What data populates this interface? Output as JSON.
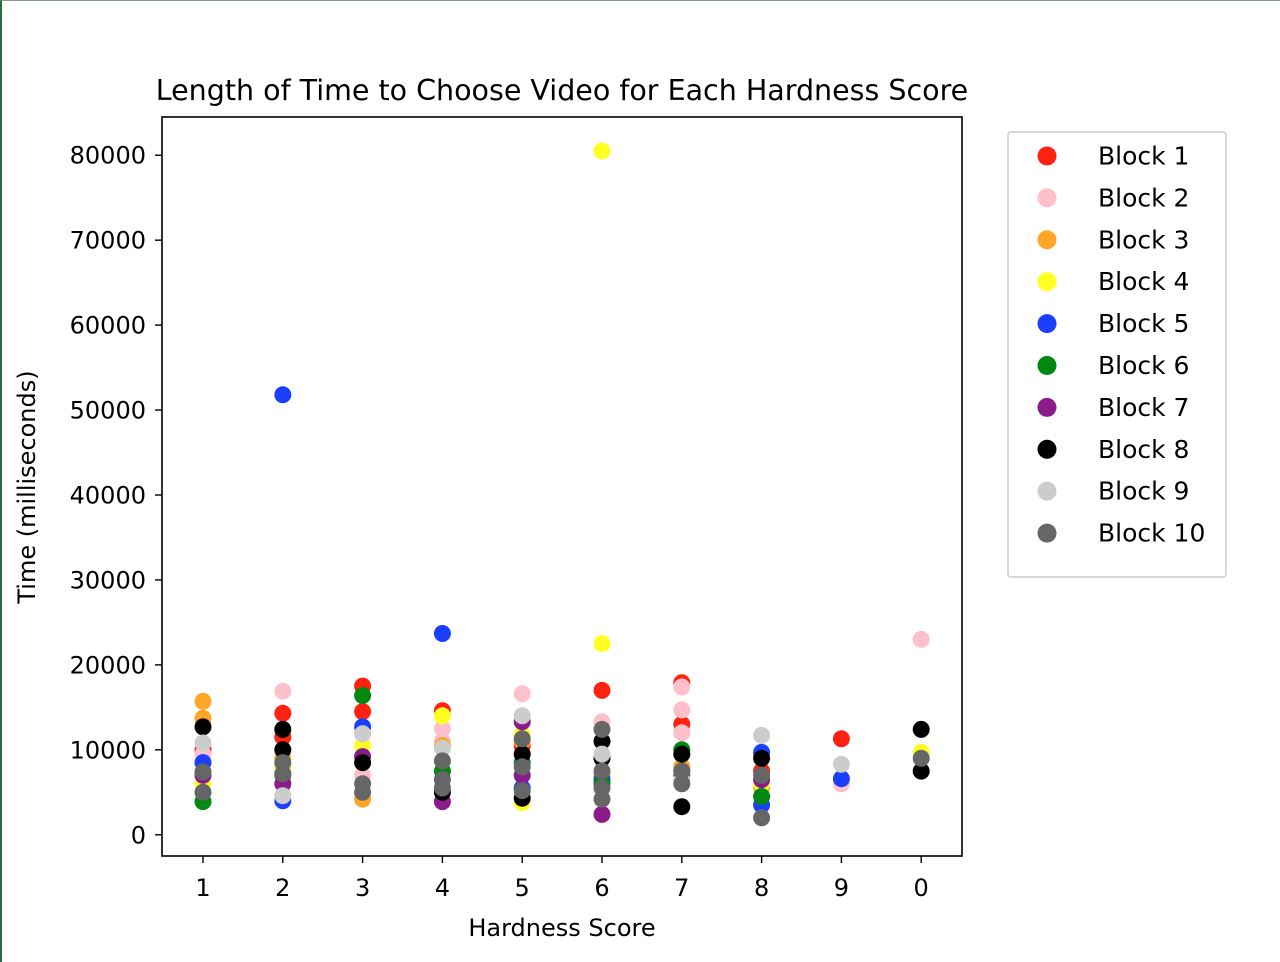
{
  "chart_data": {
    "type": "scatter",
    "title": "Length of Time to Choose Video for Each Hardness Score",
    "xlabel": "Hardness Score",
    "ylabel": "Time (milliseconds)",
    "categories": [
      "1",
      "2",
      "3",
      "4",
      "5",
      "6",
      "7",
      "8",
      "9",
      "0"
    ],
    "ylim": [
      -2500,
      84500
    ],
    "yticks": [
      0,
      10000,
      20000,
      30000,
      40000,
      50000,
      60000,
      70000,
      80000
    ],
    "grid": false,
    "legend_position": "outside-right",
    "series": [
      {
        "name": "Block 1",
        "color": "#ff2211",
        "points": [
          [
            1,
            10000
          ],
          [
            2,
            14300
          ],
          [
            2,
            11500
          ],
          [
            3,
            17500
          ],
          [
            3,
            14500
          ],
          [
            4,
            14600
          ],
          [
            5,
            10500
          ],
          [
            6,
            17000
          ],
          [
            7,
            17900
          ],
          [
            7,
            13000
          ],
          [
            8,
            7500
          ],
          [
            9,
            11300
          ]
        ]
      },
      {
        "name": "Block 2",
        "color": "#ffc0cb",
        "points": [
          [
            1,
            9500
          ],
          [
            2,
            16900
          ],
          [
            3,
            7000
          ],
          [
            4,
            12500
          ],
          [
            4,
            11000
          ],
          [
            5,
            16600
          ],
          [
            6,
            13300
          ],
          [
            7,
            17400
          ],
          [
            7,
            14700
          ],
          [
            7,
            12000
          ],
          [
            9,
            6000
          ],
          [
            10,
            23000
          ]
        ]
      },
      {
        "name": "Block 3",
        "color": "#ffa629",
        "points": [
          [
            1,
            15700
          ],
          [
            1,
            13700
          ],
          [
            2,
            9000
          ],
          [
            3,
            4200
          ],
          [
            4,
            10500
          ],
          [
            5,
            11000
          ],
          [
            6,
            7000
          ],
          [
            7,
            8000
          ],
          [
            8,
            5500
          ]
        ]
      },
      {
        "name": "Block 4",
        "color": "#ffff22",
        "points": [
          [
            1,
            6000
          ],
          [
            2,
            8000
          ],
          [
            3,
            10500
          ],
          [
            4,
            14000
          ],
          [
            5,
            11800
          ],
          [
            5,
            3800
          ],
          [
            6,
            80500
          ],
          [
            6,
            22500
          ],
          [
            7,
            9500
          ],
          [
            8,
            6000
          ],
          [
            10,
            9700
          ]
        ]
      },
      {
        "name": "Block 5",
        "color": "#1a3fff",
        "points": [
          [
            1,
            8500
          ],
          [
            2,
            51800
          ],
          [
            2,
            4000
          ],
          [
            3,
            12700
          ],
          [
            4,
            23700
          ],
          [
            5,
            5500
          ],
          [
            6,
            6500
          ],
          [
            7,
            7000
          ],
          [
            8,
            9700
          ],
          [
            8,
            3500
          ],
          [
            9,
            6600
          ]
        ]
      },
      {
        "name": "Block 6",
        "color": "#008811",
        "points": [
          [
            1,
            3900
          ],
          [
            2,
            7000
          ],
          [
            3,
            16400
          ],
          [
            4,
            7500
          ],
          [
            5,
            8500
          ],
          [
            6,
            6000
          ],
          [
            7,
            10000
          ],
          [
            8,
            4500
          ]
        ]
      },
      {
        "name": "Block 7",
        "color": "#8b1a8b",
        "points": [
          [
            1,
            7000
          ],
          [
            2,
            6000
          ],
          [
            3,
            9200
          ],
          [
            4,
            3900
          ],
          [
            5,
            13300
          ],
          [
            5,
            7000
          ],
          [
            6,
            2400
          ],
          [
            7,
            7500
          ],
          [
            8,
            6500
          ]
        ]
      },
      {
        "name": "Block 8",
        "color": "#000000",
        "points": [
          [
            1,
            12700
          ],
          [
            2,
            12400
          ],
          [
            2,
            10000
          ],
          [
            3,
            8500
          ],
          [
            4,
            5000
          ],
          [
            5,
            4300
          ],
          [
            5,
            9500
          ],
          [
            6,
            11000
          ],
          [
            6,
            9000
          ],
          [
            7,
            9500
          ],
          [
            7,
            3300
          ],
          [
            8,
            9000
          ],
          [
            10,
            12400
          ],
          [
            10,
            7500
          ]
        ]
      },
      {
        "name": "Block 9",
        "color": "#cccccc",
        "points": [
          [
            1,
            10800
          ],
          [
            2,
            4600
          ],
          [
            3,
            11900
          ],
          [
            4,
            10200
          ],
          [
            5,
            14000
          ],
          [
            6,
            9500
          ],
          [
            7,
            6500
          ],
          [
            8,
            11700
          ],
          [
            9,
            8300
          ]
        ]
      },
      {
        "name": "Block 10",
        "color": "#666666",
        "points": [
          [
            1,
            7400
          ],
          [
            1,
            5000
          ],
          [
            2,
            8500
          ],
          [
            2,
            7200
          ],
          [
            3,
            6000
          ],
          [
            3,
            5000
          ],
          [
            4,
            8700
          ],
          [
            4,
            6500
          ],
          [
            4,
            5500
          ],
          [
            5,
            11300
          ],
          [
            5,
            8000
          ],
          [
            5,
            5200
          ],
          [
            6,
            12400
          ],
          [
            6,
            7500
          ],
          [
            6,
            5500
          ],
          [
            6,
            4200
          ],
          [
            7,
            7500
          ],
          [
            7,
            6000
          ],
          [
            8,
            7000
          ],
          [
            8,
            2000
          ],
          [
            10,
            9000
          ]
        ]
      }
    ]
  }
}
